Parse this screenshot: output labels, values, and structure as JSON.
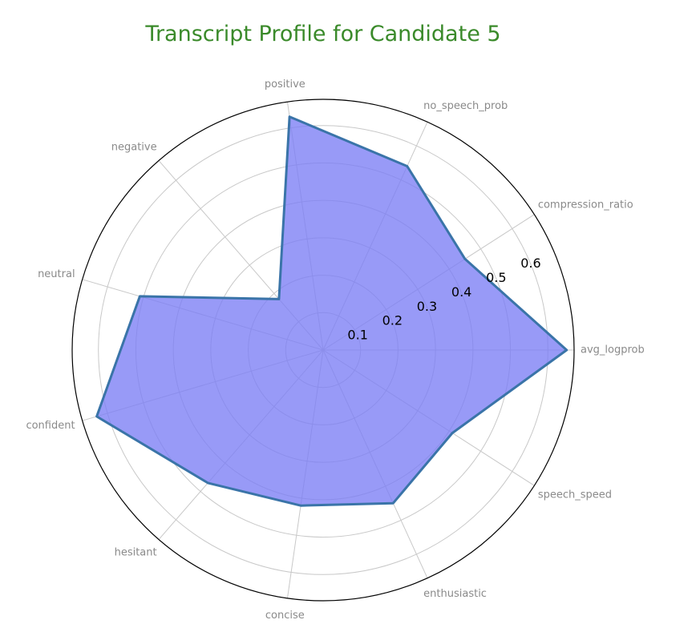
{
  "chart_data": {
    "type": "radar",
    "title": "Transcript Profile for Candidate 5",
    "categories": [
      "avg_logprob",
      "compression_ratio",
      "no_speech_prob",
      "positive",
      "negative",
      "neutral",
      "confident",
      "hesitant",
      "concise",
      "enthusiastic",
      "speech_speed"
    ],
    "series": [
      {
        "values": [
          0.65,
          0.45,
          0.54,
          0.63,
          0.18,
          0.51,
          0.63,
          0.47,
          0.42,
          0.45,
          0.41
        ]
      }
    ],
    "r_ticks": [
      0.1,
      0.2,
      0.3,
      0.4,
      0.5,
      0.6
    ],
    "rlim": [
      0,
      0.67
    ],
    "grid": true,
    "colors": {
      "fill": "#7b7df5",
      "line": "#3a74a8",
      "title": "#3a8a2a"
    }
  }
}
